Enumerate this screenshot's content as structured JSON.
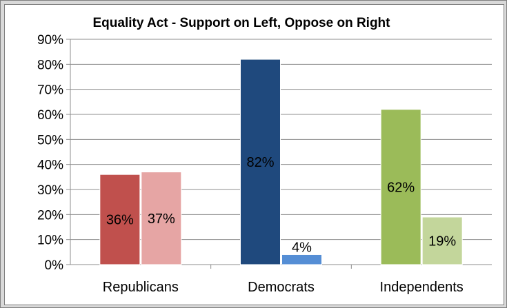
{
  "chart_data": {
    "type": "bar",
    "title": "Equality Act - Support on Left, Oppose on Right",
    "xlabel": "",
    "ylabel": "",
    "categories": [
      "Republicans",
      "Democrats",
      "Independents"
    ],
    "ylim": [
      0,
      90
    ],
    "yticks": [
      "0%",
      "10%",
      "20%",
      "30%",
      "40%",
      "50%",
      "60%",
      "70%",
      "80%",
      "90%"
    ],
    "grid": true,
    "legend": "none",
    "groups": [
      {
        "category": "Republicans",
        "support": 36,
        "oppose": 37,
        "support_label": "36%",
        "oppose_label": "37%",
        "support_color": "#c0504d",
        "oppose_color": "#e6a5a4"
      },
      {
        "category": "Democrats",
        "support": 82,
        "oppose": 4,
        "support_label": "82%",
        "oppose_label": "4%",
        "support_color": "#1f497d",
        "oppose_color": "#558ed5"
      },
      {
        "category": "Independents",
        "support": 62,
        "oppose": 19,
        "support_label": "62%",
        "oppose_label": "19%",
        "support_color": "#9bbb59",
        "oppose_color": "#c3d69b"
      }
    ]
  }
}
